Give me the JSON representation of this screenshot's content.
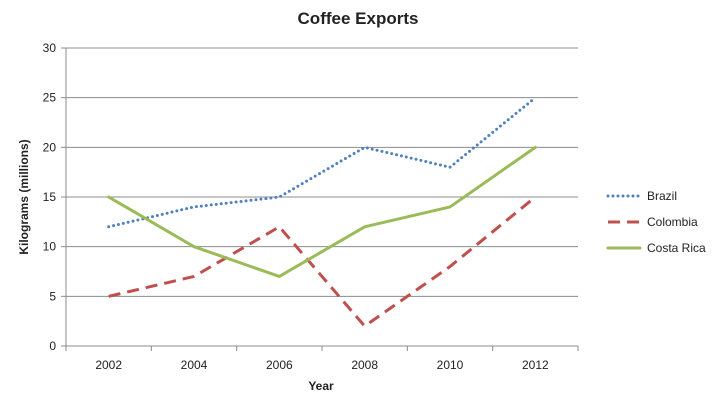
{
  "chart_data": {
    "type": "line",
    "title": "Coffee Exports",
    "xlabel": "Year",
    "ylabel": "Kilograms (millions)",
    "categories": [
      "2002",
      "2004",
      "2006",
      "2008",
      "2010",
      "2012"
    ],
    "ylim": [
      0,
      30
    ],
    "yticks": [
      0,
      5,
      10,
      15,
      20,
      25,
      30
    ],
    "grid": true,
    "legend_position": "right",
    "series": [
      {
        "name": "Brazil",
        "values": [
          12,
          14,
          15,
          20,
          18,
          25
        ],
        "color": "#4F81BD",
        "style": "dotted"
      },
      {
        "name": "Colombia",
        "values": [
          5,
          7,
          12,
          2,
          8,
          15
        ],
        "color": "#C0504D",
        "style": "dashed"
      },
      {
        "name": "Costa Rica",
        "values": [
          15,
          10,
          7,
          12,
          14,
          20
        ],
        "color": "#9BBB59",
        "style": "solid"
      }
    ]
  }
}
